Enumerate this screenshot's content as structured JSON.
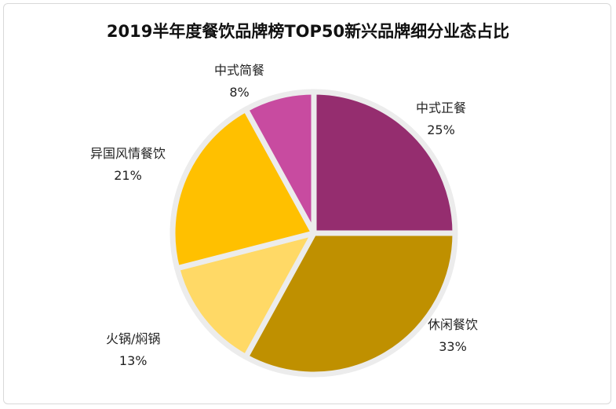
{
  "chart_data": {
    "type": "pie",
    "title": "2019半年度餐饮品牌榜TOP50新兴品牌细分业态占比",
    "slices": [
      {
        "label": "中式正餐",
        "value": 25,
        "value_label": "25%",
        "color": "#952D6F"
      },
      {
        "label": "休闲餐饮",
        "value": 33,
        "value_label": "33%",
        "color": "#BF9000"
      },
      {
        "label": "火锅/焖锅",
        "value": 13,
        "value_label": "13%",
        "color": "#FFD966"
      },
      {
        "label": "异国风情餐饮",
        "value": 21,
        "value_label": "21%",
        "color": "#FFC000"
      },
      {
        "label": "中式简餐",
        "value": 8,
        "value_label": "8%",
        "color": "#C84BA0"
      }
    ],
    "start_angle": "12 o'clock",
    "direction": "clockwise"
  }
}
